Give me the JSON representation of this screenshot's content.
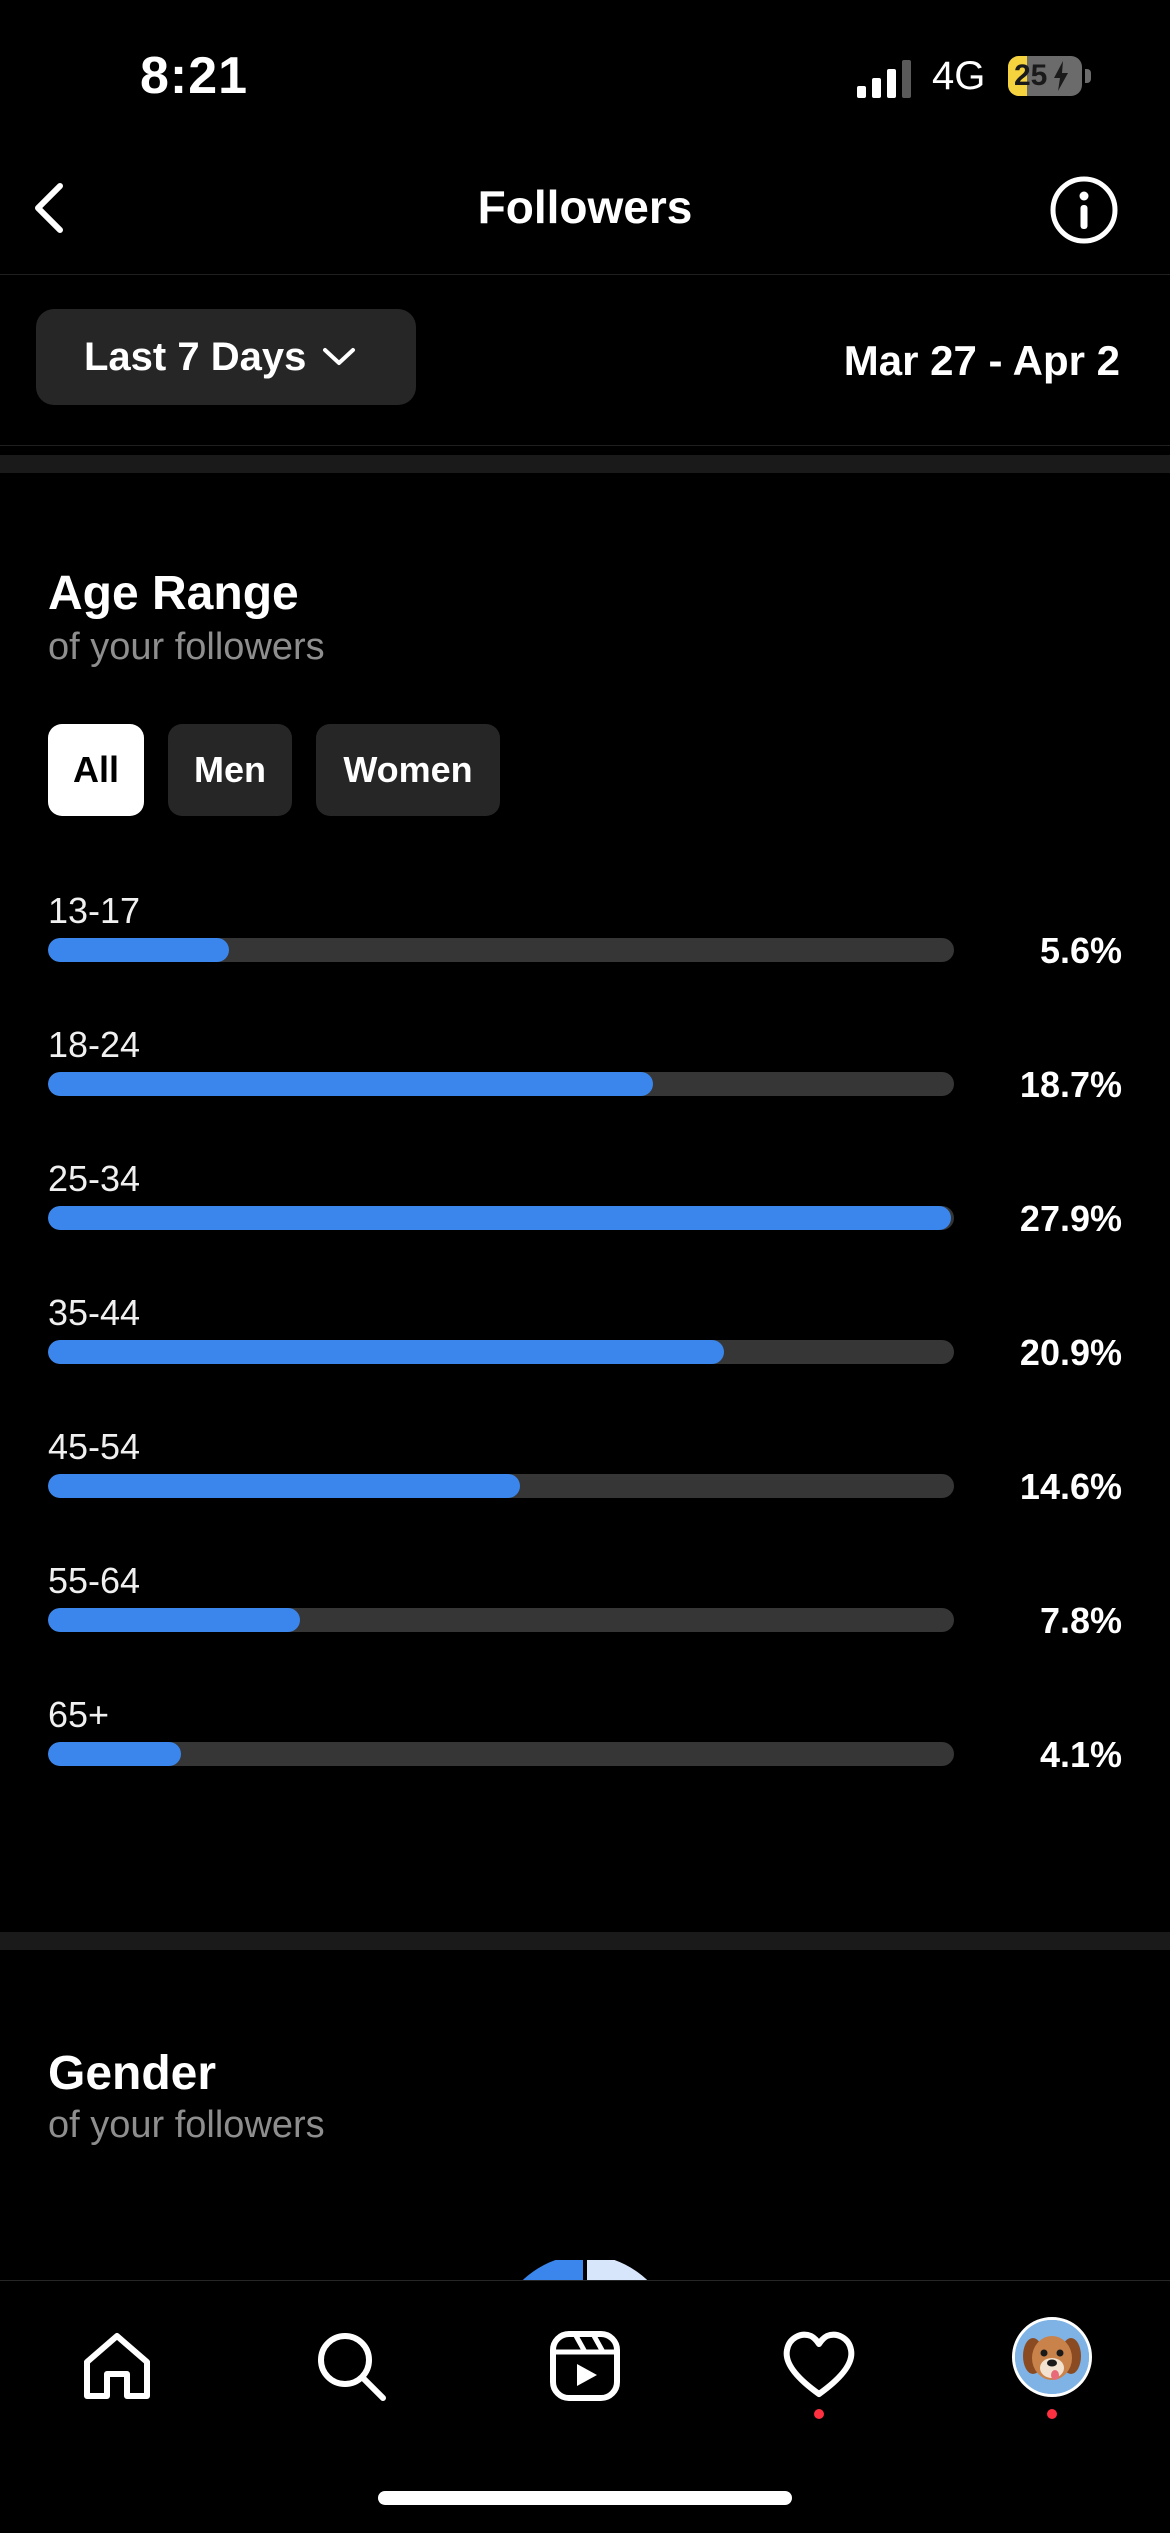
{
  "status_bar": {
    "time": "8:21",
    "network": "4G",
    "battery": "25",
    "battery_level": 0.25
  },
  "header": {
    "title": "Followers"
  },
  "filter": {
    "range_label": "Last 7 Days",
    "date_range": "Mar 27 - Apr 2"
  },
  "age_range": {
    "title": "Age Range",
    "subtitle": "of your followers",
    "segments": [
      "All",
      "Men",
      "Women"
    ],
    "active_segment": "All",
    "max_value": 28,
    "rows": [
      {
        "label": "13-17",
        "pct": "5.6%",
        "value": 5.6
      },
      {
        "label": "18-24",
        "pct": "18.7%",
        "value": 18.7
      },
      {
        "label": "25-34",
        "pct": "27.9%",
        "value": 27.9
      },
      {
        "label": "35-44",
        "pct": "20.9%",
        "value": 20.9
      },
      {
        "label": "45-54",
        "pct": "14.6%",
        "value": 14.6
      },
      {
        "label": "55-64",
        "pct": "7.8%",
        "value": 7.8
      },
      {
        "label": "65+",
        "pct": "4.1%",
        "value": 4.1
      }
    ],
    "bar_color": "#3a86ec"
  },
  "gender": {
    "title": "Gender",
    "subtitle": "of your followers"
  },
  "bottom_nav": {
    "items": [
      "home-icon",
      "search-icon",
      "reels-icon",
      "heart-icon",
      "profile-avatar"
    ],
    "notification_color": "#ff3040"
  }
}
